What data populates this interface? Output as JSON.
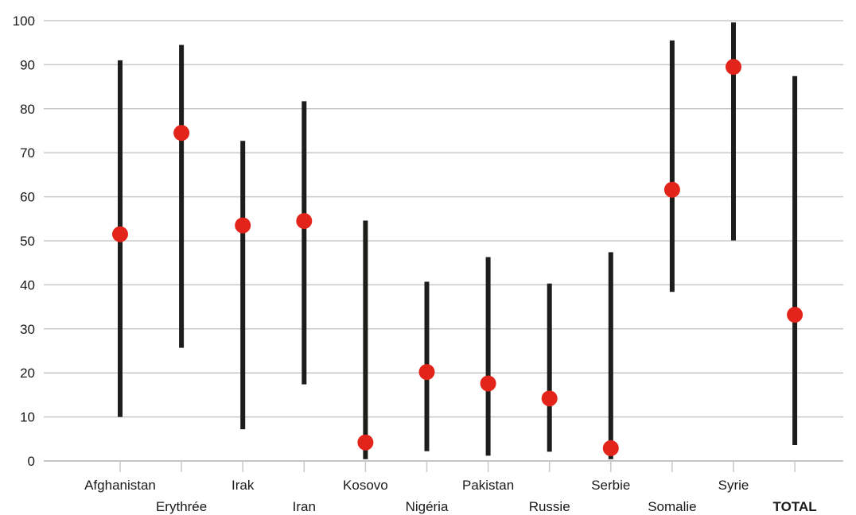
{
  "chart_data": {
    "type": "range-dot",
    "title": "",
    "xlabel": "",
    "ylabel": "",
    "ylim": [
      0,
      100
    ],
    "y_ticks": [
      0,
      10,
      20,
      30,
      40,
      50,
      60,
      70,
      80,
      90,
      100
    ],
    "grid": true,
    "categories": [
      "Afghanistan",
      "Erythrée",
      "Irak",
      "Iran",
      "Kosovo",
      "Nigéria",
      "Pakistan",
      "Russie",
      "Serbie",
      "Somalie",
      "Syrie",
      "TOTAL"
    ],
    "emphasized_category": "TOTAL",
    "series": [
      {
        "values": [
          51.5,
          74.5,
          53.5,
          54.5,
          4.2,
          20.2,
          17.6,
          14.2,
          2.9,
          61.6,
          89.5,
          33.2
        ]
      },
      {
        "values": [
          10,
          25.7,
          7.2,
          17.4,
          0.4,
          2.2,
          1.2,
          2.1,
          0.4,
          38.4,
          50.1,
          3.6
        ]
      },
      {
        "values": [
          91,
          94.5,
          72.7,
          81.7,
          54.6,
          40.7,
          46.3,
          40.3,
          47.4,
          95.5,
          99.6,
          87.4
        ]
      }
    ],
    "colors": {
      "point": "#e3241b",
      "range": "#1d1d1b",
      "grid": "#c8c8c8"
    }
  }
}
